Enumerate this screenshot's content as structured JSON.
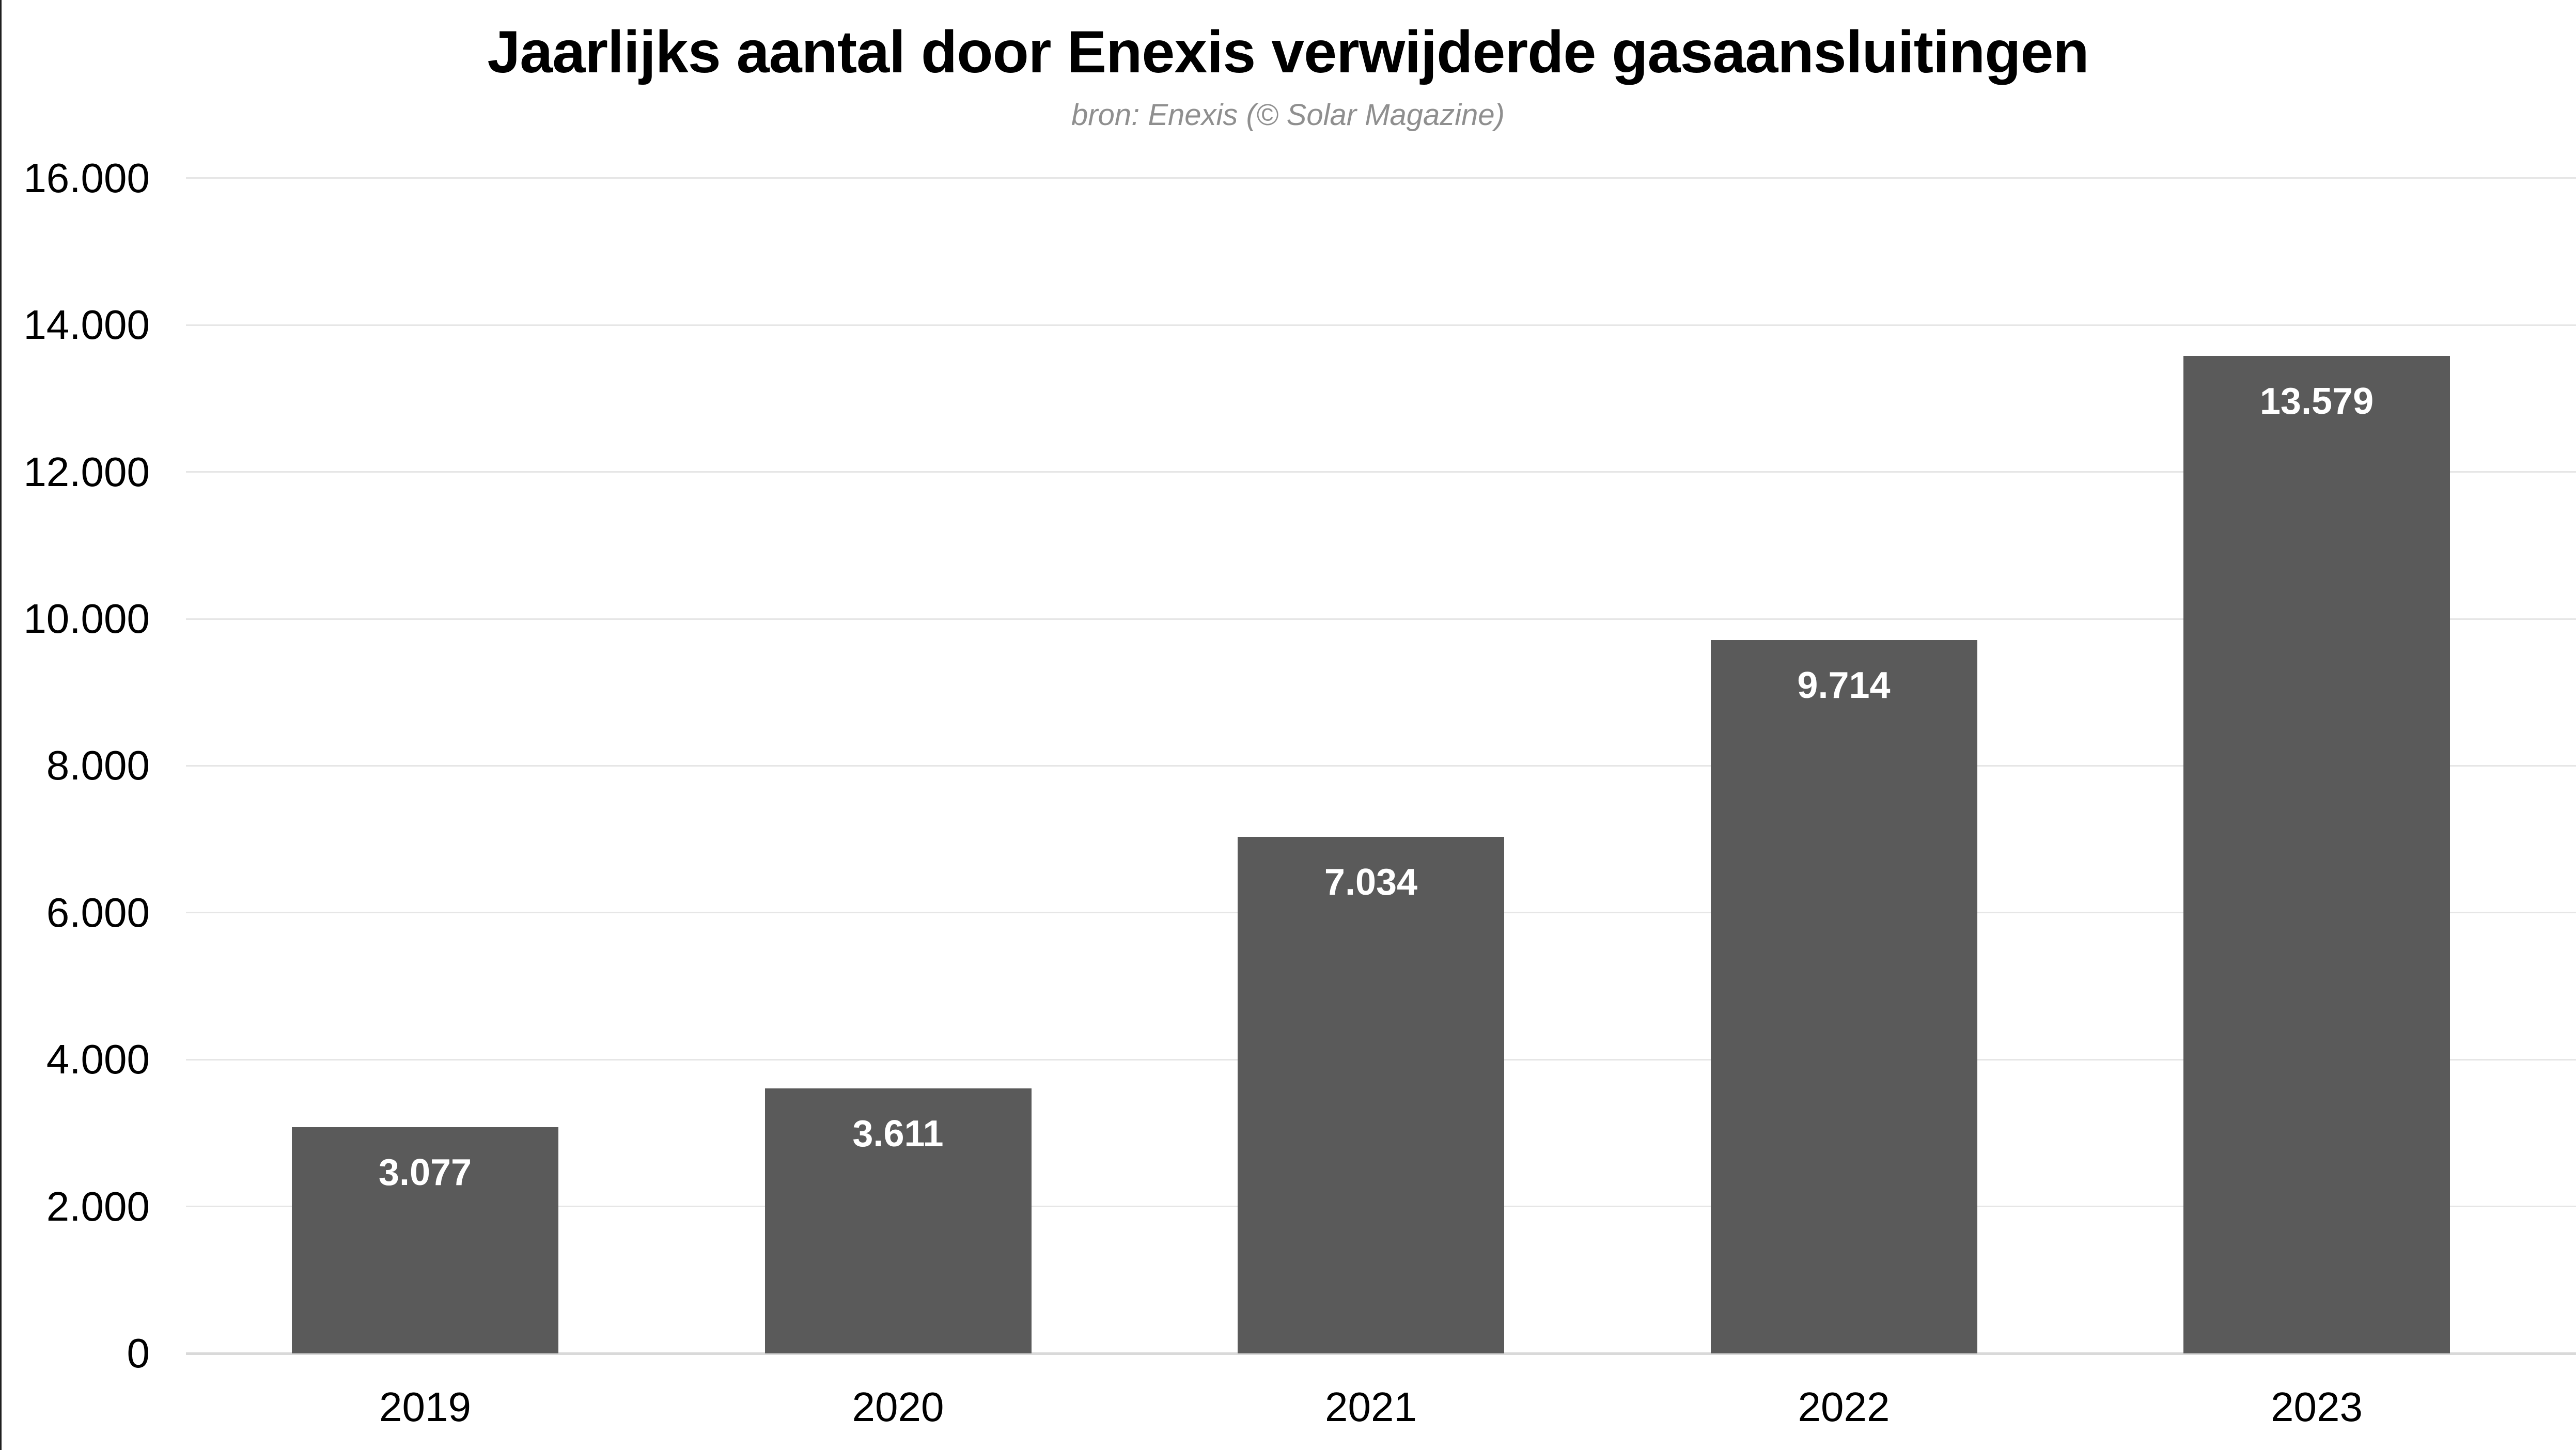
{
  "page": {
    "background": "#ffffff"
  },
  "chart": {
    "title": "Jaarlijks aantal door Enexis verwijderde gasaansluitingen",
    "subtitle": "bron: Enexis (© Solar Magazine)",
    "colors": {
      "bar": "#5a5a5a",
      "bar_label": "#ffffff",
      "title": "#000000",
      "subtitle": "#8f8f8f",
      "axis_label": "#000000",
      "gridline": "#e6e6e6",
      "baseline": "#d9d9d9",
      "left_edge": "#1f1f1f"
    }
  },
  "chart_data": {
    "type": "bar",
    "title": "Jaarlijks aantal door Enexis verwijderde gasaansluitingen",
    "subtitle": "bron: Enexis (© Solar Magazine)",
    "categories": [
      "2019",
      "2020",
      "2021",
      "2022",
      "2023"
    ],
    "values": [
      3077,
      3611,
      7034,
      9714,
      13579
    ],
    "value_labels": [
      "3.077",
      "3.611",
      "7.034",
      "9.714",
      "13.579"
    ],
    "xlabel": "",
    "ylabel": "",
    "ylim": [
      0,
      16000
    ],
    "yticks": [
      0,
      2000,
      4000,
      6000,
      8000,
      10000,
      12000,
      14000,
      16000
    ],
    "ytick_labels": [
      "0",
      "2.000",
      "4.000",
      "6.000",
      "8.000",
      "10.000",
      "12.000",
      "14.000",
      "16.000"
    ],
    "grid": true,
    "legend": false,
    "bar_labels_inside_top": true
  }
}
